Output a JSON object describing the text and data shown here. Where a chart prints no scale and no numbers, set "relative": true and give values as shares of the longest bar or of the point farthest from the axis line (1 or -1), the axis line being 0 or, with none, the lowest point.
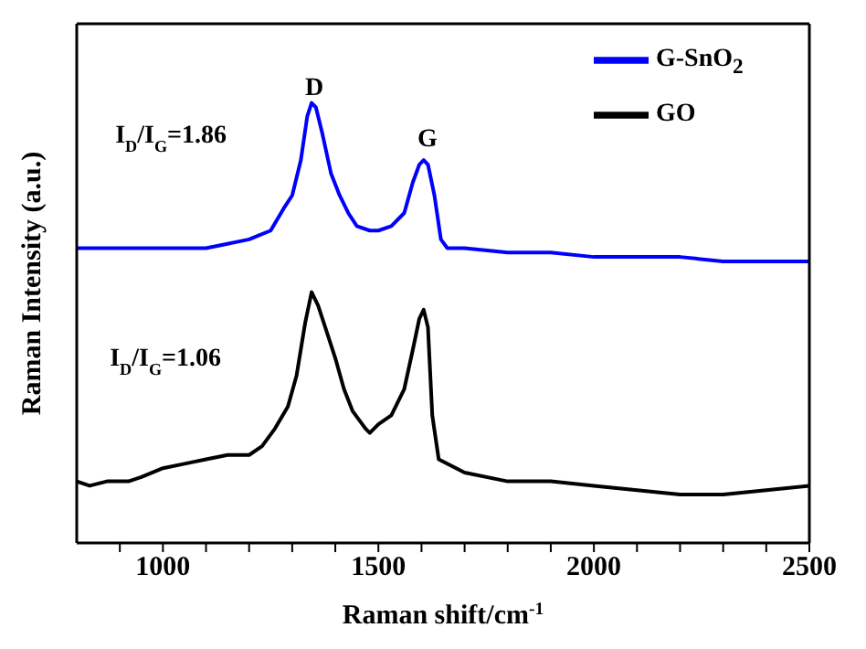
{
  "chart_data": {
    "type": "line",
    "xlabel": "Raman shift/cm$^{-1}$",
    "ylabel": "Raman  Intensity (a.u.)",
    "relative": true,
    "xlim": [
      800,
      2500
    ],
    "xticks": [
      {
        "value": 900,
        "label": null
      },
      1000,
      {
        "value": 1100,
        "label": null
      },
      {
        "value": 1200,
        "label": null
      },
      {
        "value": 1300,
        "label": null
      },
      {
        "value": 1400,
        "label": null
      },
      1500,
      {
        "value": 1600,
        "label": null
      },
      {
        "value": 1700,
        "label": null
      },
      {
        "value": 1800,
        "label": null
      },
      {
        "value": 1900,
        "label": null
      },
      2000,
      {
        "value": 2100,
        "label": null
      },
      {
        "value": 2200,
        "label": null
      },
      {
        "value": 2300,
        "label": null
      },
      {
        "value": 2400,
        "label": null
      },
      2500
    ],
    "legend": "top right",
    "grid": false,
    "marker": "none",
    "line_style": "solid",
    "tick_labels": "x",
    "series": [
      {
        "name": "G-SnO$_{2}$",
        "color": "#0000ff",
        "x": [
          800,
          900,
          1000,
          1100,
          1150,
          1200,
          1250,
          1280,
          1300,
          1320,
          1335,
          1345,
          1355,
          1370,
          1390,
          1410,
          1430,
          1450,
          1480,
          1500,
          1530,
          1560,
          1580,
          1595,
          1605,
          1615,
          1630,
          1645,
          1660,
          1700,
          1800,
          1900,
          2000,
          2100,
          2200,
          2300,
          2400,
          2500
        ],
        "values": [
          0.67,
          0.67,
          0.67,
          0.67,
          0.68,
          0.69,
          0.71,
          0.76,
          0.79,
          0.87,
          0.97,
          1,
          0.99,
          0.93,
          0.84,
          0.79,
          0.75,
          0.72,
          0.71,
          0.71,
          0.72,
          0.75,
          0.82,
          0.86,
          0.87,
          0.86,
          0.79,
          0.69,
          0.67,
          0.67,
          0.66,
          0.66,
          0.65,
          0.65,
          0.65,
          0.64,
          0.64,
          0.64
        ]
      },
      {
        "name": "GO",
        "color": "#000000",
        "x": [
          800,
          830,
          870,
          920,
          950,
          1000,
          1050,
          1100,
          1150,
          1200,
          1230,
          1260,
          1290,
          1310,
          1330,
          1345,
          1360,
          1380,
          1400,
          1420,
          1440,
          1470,
          1480,
          1500,
          1530,
          1560,
          1580,
          1595,
          1605,
          1615,
          1625,
          1640,
          1700,
          1800,
          1900,
          2000,
          2100,
          2200,
          2300,
          2400,
          2500
        ],
        "values": [
          0.14,
          0.13,
          0.14,
          0.14,
          0.15,
          0.17,
          0.18,
          0.19,
          0.2,
          0.2,
          0.22,
          0.26,
          0.31,
          0.38,
          0.5,
          0.57,
          0.54,
          0.48,
          0.42,
          0.35,
          0.3,
          0.26,
          0.25,
          0.27,
          0.29,
          0.35,
          0.44,
          0.51,
          0.53,
          0.49,
          0.29,
          0.19,
          0.16,
          0.14,
          0.14,
          0.13,
          0.12,
          0.11,
          0.11,
          0.12,
          0.13
        ]
      }
    ],
    "annotations": [
      "D",
      "G",
      "I$_{D}$/I$_{G}$=1.86",
      "I$_{D}$/I$_{G}$=1.06"
    ]
  }
}
